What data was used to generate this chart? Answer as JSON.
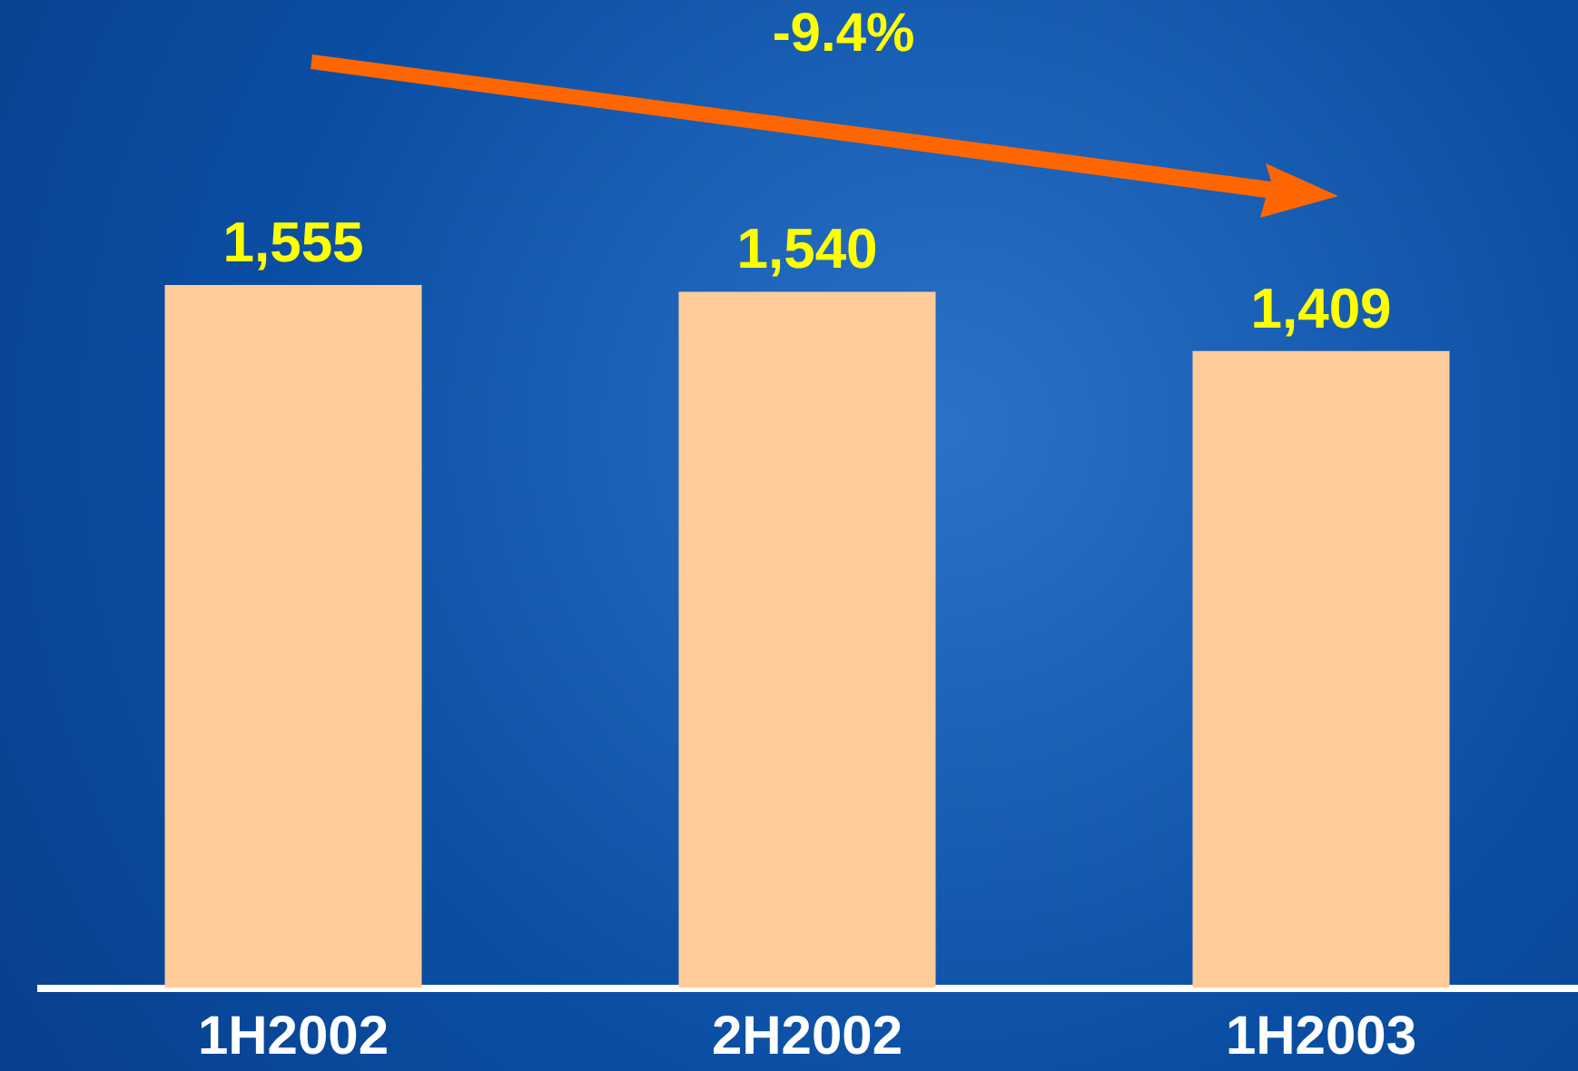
{
  "chart_data": {
    "type": "bar",
    "categories": [
      "1H2002",
      "2H2002",
      "1H2003"
    ],
    "values": [
      1555,
      1540,
      1409
    ],
    "color": "#ffcc99",
    "value_labels": [
      "1,555",
      "1,540",
      "1,409"
    ],
    "annotations": [
      "-9.4%"
    ]
  }
}
